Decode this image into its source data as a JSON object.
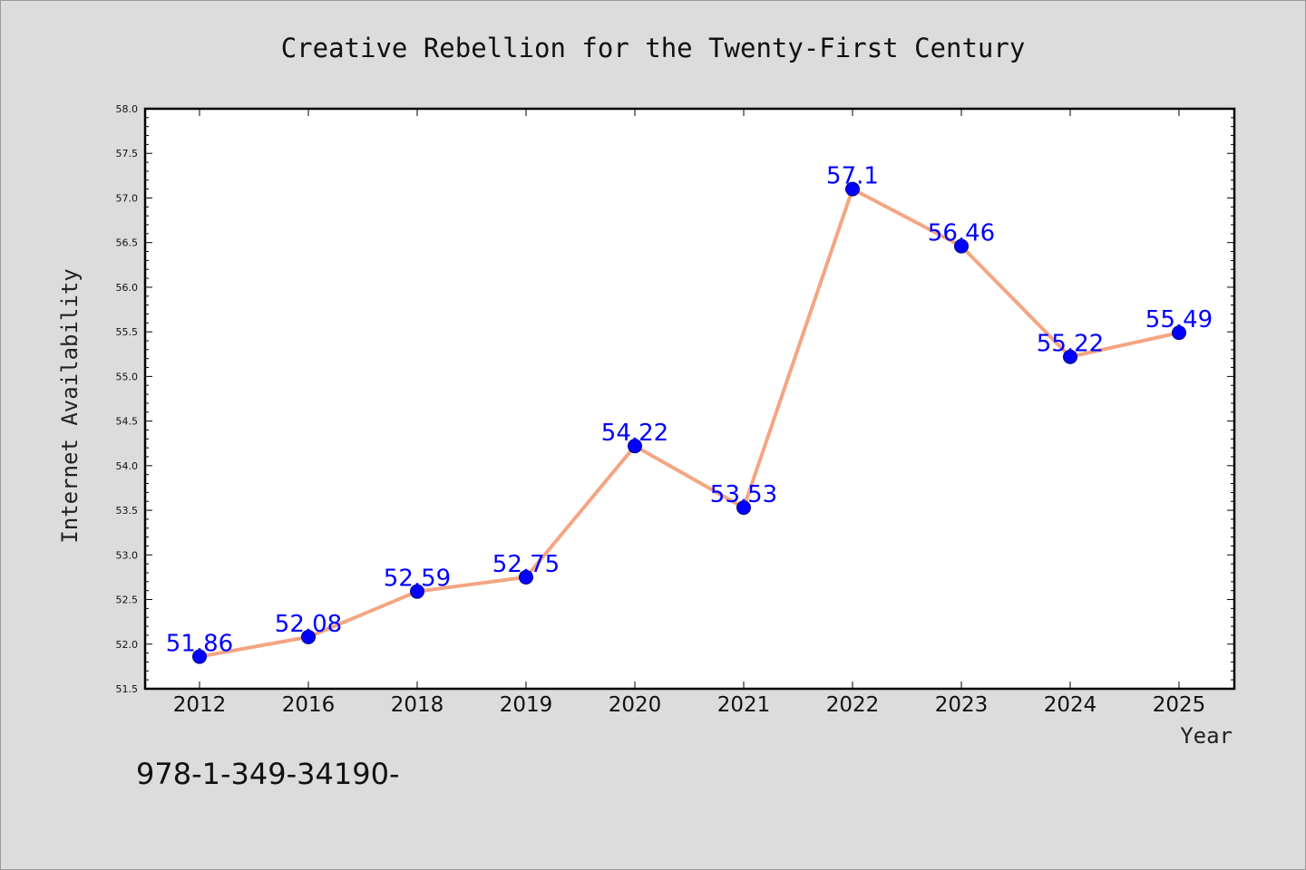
{
  "chart_data": {
    "type": "line",
    "title": "Creative Rebellion for the Twenty-First Century",
    "xlabel": "Year",
    "ylabel": "Internet Availability",
    "categories": [
      "2012",
      "2016",
      "2018",
      "2019",
      "2020",
      "2021",
      "2022",
      "2023",
      "2024",
      "2025"
    ],
    "series": [
      {
        "values": [
          51.86,
          52.08,
          52.59,
          52.75,
          54.22,
          53.53,
          57.1,
          56.46,
          55.22,
          55.49
        ],
        "data_labels": [
          "51.86",
          "52.08",
          "52.59",
          "52.75",
          "54.22",
          "53.53",
          "57.1",
          "56.46",
          "55.22",
          "55.49"
        ]
      }
    ],
    "ylim": [
      51.5,
      58.0
    ],
    "yticks": [
      "51.5",
      "52.0",
      "52.5",
      "53.0",
      "53.5",
      "54.0",
      "54.5",
      "55.0",
      "55.5",
      "56.0",
      "56.5",
      "57.0",
      "57.5",
      "58.0"
    ],
    "grid": false,
    "legend": "none",
    "colors": {
      "line": "#f4a582",
      "marker": "#0000ff",
      "marker_edge": "#000080",
      "data_label": "#0000ff",
      "plot_background": "#ffffff",
      "figure_background": "#dcdcdc"
    }
  },
  "footnote": "978-1-349-34190-"
}
